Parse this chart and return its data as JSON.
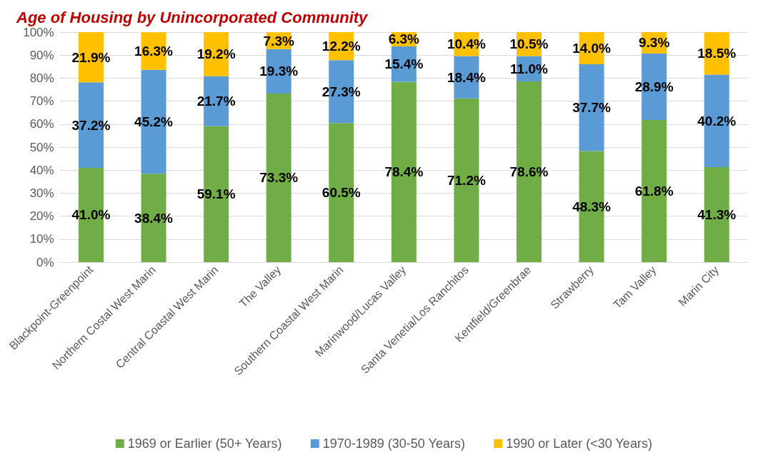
{
  "chart_data": {
    "type": "bar",
    "stacked": true,
    "title": "Age of Housing by Unincorporated Community",
    "categories": [
      "Blackpoint-Greenpoint",
      "Northern Costal West Marin",
      "Central Coastal West Marin",
      "The Valley",
      "Southern Coastal West Marin",
      "Marinwood/Lucas Valley",
      "Santa Venetia/Los Ranchitos",
      "Kentfield/Greenbrae",
      "Strawberry",
      "Tam Valley",
      "Marin City"
    ],
    "series": [
      {
        "name": "1969 or Earlier (50+ Years)",
        "color": "#70ad47",
        "values": [
          41.0,
          38.4,
          59.1,
          73.3,
          60.5,
          78.4,
          71.2,
          78.6,
          48.3,
          61.8,
          41.3
        ],
        "value_labels": [
          "41.0%",
          "38.4%",
          "59.1%",
          "73.3%",
          "60.5%",
          "78.4%",
          "71.2%",
          "78.6%",
          "48.3%",
          "61.8%",
          "41.3%"
        ]
      },
      {
        "name": "1970-1989 (30-50 Years)",
        "color": "#5b9bd5",
        "values": [
          37.2,
          45.2,
          21.7,
          19.3,
          27.3,
          15.4,
          18.4,
          11.0,
          37.7,
          28.9,
          40.2
        ],
        "value_labels": [
          "37.2%",
          "45.2%",
          "21.7%",
          "19.3%",
          "27.3%",
          "15.4%",
          "18.4%",
          "11.0%",
          "37.7%",
          "28.9%",
          "40.2%"
        ]
      },
      {
        "name": "1990 or Later (<30 Years)",
        "color": "#ffc000",
        "values": [
          21.9,
          16.3,
          19.2,
          7.3,
          12.2,
          6.3,
          10.4,
          10.5,
          14.0,
          9.3,
          18.5
        ],
        "value_labels": [
          "21.9%",
          "16.3%",
          "19.2%",
          "7.3%",
          "12.2%",
          "6.3%",
          "10.4%",
          "10.5%",
          "14.0%",
          "9.3%",
          "18.5%"
        ]
      }
    ],
    "ylim": [
      0,
      100
    ],
    "yticks": [
      {
        "value": 0,
        "label": "0%"
      },
      {
        "value": 10,
        "label": "10%"
      },
      {
        "value": 20,
        "label": "20%"
      },
      {
        "value": 30,
        "label": "30%"
      },
      {
        "value": 40,
        "label": "40%"
      },
      {
        "value": 50,
        "label": "50%"
      },
      {
        "value": 60,
        "label": "60%"
      },
      {
        "value": 70,
        "label": "70%"
      },
      {
        "value": 80,
        "label": "80%"
      },
      {
        "value": 90,
        "label": "90%"
      },
      {
        "value": 100,
        "label": "100%"
      }
    ],
    "grid": "y",
    "legend": "bottom"
  }
}
